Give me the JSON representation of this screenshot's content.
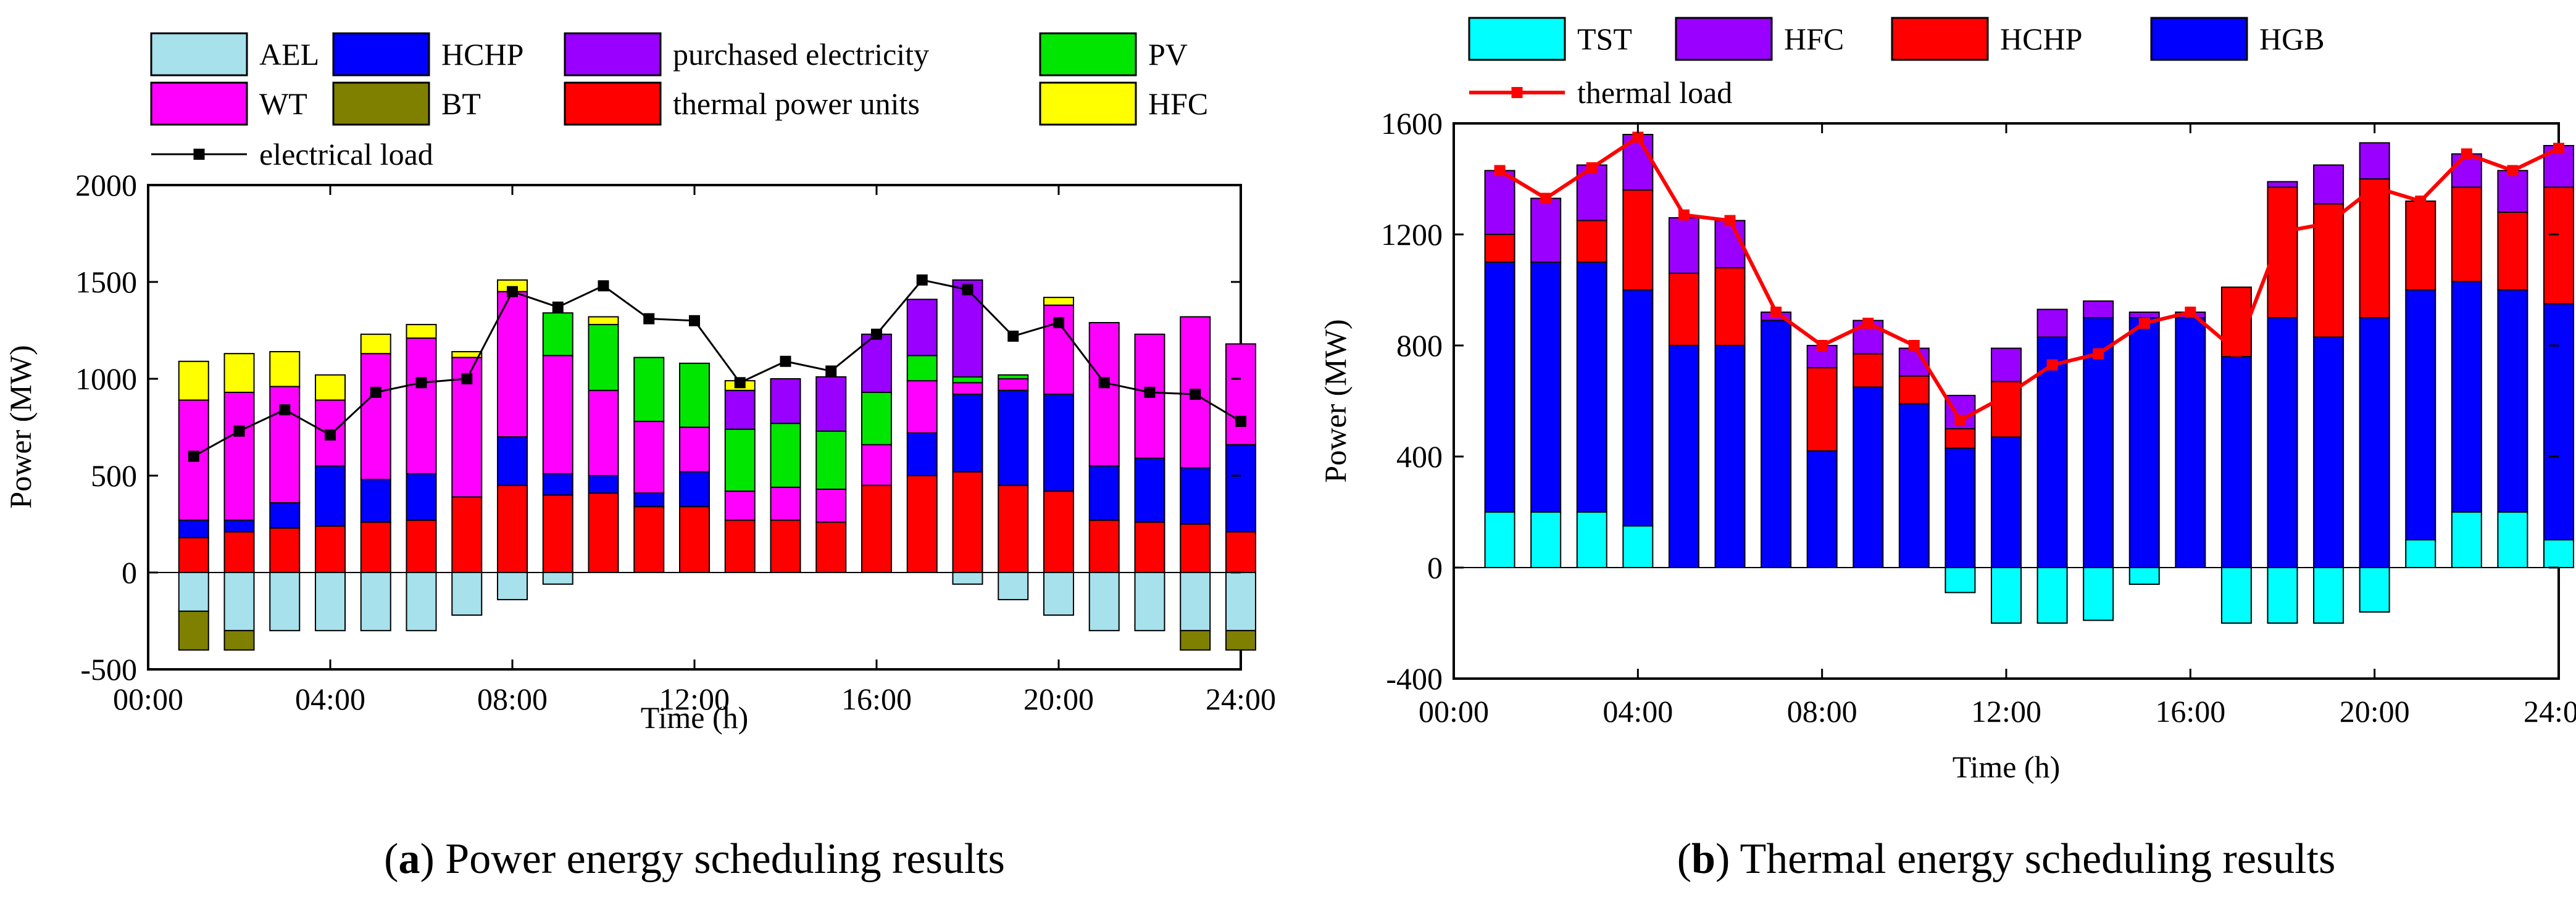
{
  "chart_data": [
    {
      "type": "bar",
      "stacked": true,
      "caption_letter": "a",
      "caption_text": "Power energy scheduling results",
      "xlabel": "Time (h)",
      "ylabel": "Power (MW)",
      "ylim": [
        -500,
        2000
      ],
      "yticks": [
        -500,
        0,
        500,
        1000,
        1500,
        2000
      ],
      "xticks": [
        "00:00",
        "04:00",
        "08:00",
        "12:00",
        "16:00",
        "20:00",
        "24:00"
      ],
      "x": [
        1,
        2,
        3,
        4,
        5,
        6,
        7,
        8,
        9,
        10,
        11,
        12,
        13,
        14,
        15,
        16,
        17,
        18,
        19,
        20,
        21,
        22,
        23,
        24
      ],
      "series": [
        {
          "name": "AEL",
          "color": "#A6E1EC",
          "values": [
            -200,
            -300,
            -300,
            -300,
            -300,
            -300,
            -220,
            -140,
            -60,
            0,
            0,
            0,
            0,
            0,
            0,
            0,
            0,
            -60,
            -140,
            -220,
            -300,
            -300,
            -300,
            -300
          ]
        },
        {
          "name": "BT",
          "color": "#808000",
          "values": [
            -200,
            -100,
            0,
            0,
            0,
            0,
            0,
            0,
            0,
            0,
            0,
            0,
            0,
            0,
            0,
            0,
            0,
            0,
            0,
            0,
            0,
            0,
            -100,
            -100
          ]
        },
        {
          "name": "thermal power units",
          "color": "#FF0000",
          "values": [
            180,
            210,
            230,
            240,
            260,
            270,
            390,
            450,
            400,
            410,
            340,
            340,
            270,
            270,
            260,
            450,
            500,
            520,
            450,
            420,
            270,
            260,
            250,
            210
          ]
        },
        {
          "name": "HCHP",
          "color": "#0000FF",
          "values": [
            90,
            60,
            130,
            310,
            220,
            240,
            0,
            250,
            110,
            90,
            70,
            180,
            0,
            0,
            0,
            0,
            220,
            400,
            490,
            500,
            280,
            330,
            290,
            450
          ]
        },
        {
          "name": "WT",
          "color": "#FF00FF",
          "values": [
            620,
            660,
            600,
            340,
            650,
            700,
            720,
            750,
            610,
            440,
            370,
            230,
            150,
            170,
            170,
            210,
            270,
            60,
            60,
            460,
            740,
            640,
            780,
            520
          ]
        },
        {
          "name": "PV",
          "color": "#00E600",
          "values": [
            0,
            0,
            0,
            0,
            0,
            0,
            0,
            0,
            220,
            340,
            330,
            330,
            320,
            330,
            300,
            270,
            130,
            30,
            20,
            0,
            0,
            0,
            0,
            0
          ]
        },
        {
          "name": "purchased electricity",
          "color": "#9900FF",
          "values": [
            0,
            0,
            0,
            0,
            0,
            0,
            0,
            0,
            0,
            0,
            0,
            0,
            200,
            230,
            280,
            300,
            290,
            500,
            0,
            0,
            0,
            0,
            0,
            0
          ]
        },
        {
          "name": "HFC",
          "color": "#FFFF00",
          "values": [
            200,
            200,
            180,
            130,
            100,
            70,
            30,
            60,
            0,
            40,
            0,
            0,
            50,
            0,
            0,
            0,
            0,
            0,
            0,
            40,
            0,
            0,
            0,
            0
          ]
        },
        {
          "name": "BT",
          "color": "#808000",
          "values": [
            0,
            0,
            0,
            0,
            0,
            0,
            0,
            0,
            0,
            0,
            0,
            0,
            0,
            0,
            0,
            0,
            0,
            0,
            0,
            0,
            0,
            0,
            0,
            0
          ]
        }
      ],
      "legend": [
        {
          "name": "AEL",
          "color": "#A6E1EC",
          "kind": "box"
        },
        {
          "name": "HCHP",
          "color": "#0000FF",
          "kind": "box"
        },
        {
          "name": "purchased electricity",
          "color": "#9900FF",
          "kind": "box"
        },
        {
          "name": "PV",
          "color": "#00E600",
          "kind": "box"
        },
        {
          "name": "WT",
          "color": "#FF00FF",
          "kind": "box"
        },
        {
          "name": "BT",
          "color": "#808000",
          "kind": "box"
        },
        {
          "name": "thermal power units",
          "color": "#FF0000",
          "kind": "box"
        },
        {
          "name": "HFC",
          "color": "#FFFF00",
          "kind": "box"
        },
        {
          "name": "electrical load",
          "color": "#000000",
          "kind": "line"
        }
      ],
      "line": {
        "name": "electrical load",
        "color": "#000000",
        "values": [
          600,
          730,
          840,
          710,
          930,
          980,
          1000,
          1450,
          1370,
          1480,
          1310,
          1300,
          980,
          1090,
          1040,
          1230,
          1510,
          1460,
          1220,
          1290,
          980,
          930,
          920,
          780
        ]
      }
    },
    {
      "type": "bar",
      "stacked": true,
      "caption_letter": "b",
      "caption_text": "Thermal energy scheduling results",
      "xlabel": "Time (h)",
      "ylabel": "Power (MW)",
      "ylim": [
        -400,
        1600
      ],
      "yticks": [
        -400,
        0,
        400,
        800,
        1200,
        1600
      ],
      "xticks": [
        "00:00",
        "04:00",
        "08:00",
        "12:00",
        "16:00",
        "20:00",
        "24:00"
      ],
      "x": [
        1,
        2,
        3,
        4,
        5,
        6,
        7,
        8,
        9,
        10,
        11,
        12,
        13,
        14,
        15,
        16,
        17,
        18,
        19,
        20,
        21,
        22,
        23,
        24
      ],
      "series": [
        {
          "name": "TST",
          "color": "#00FFFF",
          "values": [
            200,
            200,
            200,
            150,
            0,
            0,
            0,
            0,
            0,
            0,
            -90,
            -200,
            -200,
            -190,
            -60,
            0,
            -200,
            -200,
            -200,
            -160,
            100,
            200,
            200,
            100
          ]
        },
        {
          "name": "HGB",
          "color": "#0000FF",
          "values": [
            900,
            900,
            900,
            850,
            800,
            800,
            890,
            420,
            650,
            590,
            430,
            470,
            830,
            900,
            900,
            900,
            760,
            900,
            830,
            900,
            900,
            830,
            800,
            850
          ]
        },
        {
          "name": "HCHP",
          "color": "#FF0000",
          "values": [
            100,
            0,
            150,
            360,
            260,
            280,
            0,
            300,
            120,
            100,
            70,
            200,
            0,
            0,
            0,
            0,
            250,
            470,
            480,
            500,
            320,
            340,
            280,
            420
          ]
        },
        {
          "name": "HFC",
          "color": "#9900FF",
          "values": [
            230,
            230,
            200,
            200,
            200,
            170,
            30,
            80,
            120,
            100,
            120,
            120,
            100,
            60,
            20,
            20,
            0,
            20,
            140,
            130,
            0,
            120,
            150,
            150
          ]
        }
      ],
      "legend": [
        {
          "name": "TST",
          "color": "#00FFFF",
          "kind": "box"
        },
        {
          "name": "HFC",
          "color": "#9900FF",
          "kind": "box"
        },
        {
          "name": "HCHP",
          "color": "#FF0000",
          "kind": "box"
        },
        {
          "name": "HGB",
          "color": "#0000FF",
          "kind": "box"
        },
        {
          "name": "thermal load",
          "color": "#FF0000",
          "kind": "line"
        }
      ],
      "line": {
        "name": "thermal load",
        "color": "#FF0000",
        "values": [
          1430,
          1330,
          1440,
          1550,
          1270,
          1250,
          920,
          800,
          880,
          800,
          530,
          620,
          730,
          770,
          880,
          920,
          780,
          1210,
          1240,
          1370,
          1320,
          1490,
          1430,
          1510
        ]
      }
    }
  ]
}
